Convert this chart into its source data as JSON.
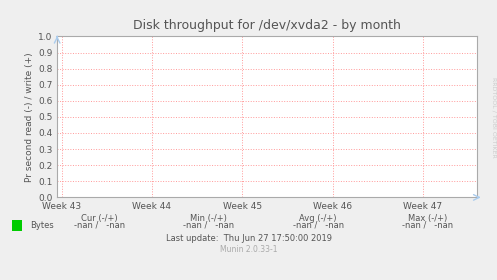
{
  "title": "Disk throughput for /dev/xvda2 - by month",
  "ylabel": "Pr second read (-) / write (+)",
  "xtick_labels": [
    "Week 43",
    "Week 44",
    "Week 45",
    "Week 46",
    "Week 47"
  ],
  "xtick_positions": [
    0,
    1,
    2,
    3,
    4
  ],
  "ylim": [
    0.0,
    1.0
  ],
  "xlim": [
    -0.05,
    4.6
  ],
  "yticks": [
    0.0,
    0.1,
    0.2,
    0.3,
    0.4,
    0.5,
    0.6,
    0.7,
    0.8,
    0.9,
    1.0
  ],
  "bg_color": "#efefef",
  "plot_bg_color": "#ffffff",
  "grid_color": "#ff9999",
  "title_fontsize": 9,
  "label_fontsize": 6.5,
  "tick_fontsize": 6.5,
  "footer_fontsize": 6.0,
  "side_label": "RRDTOOL / TOBI OETIKER",
  "side_label_color": "#cccccc",
  "legend_color": "#00cc00",
  "border_color": "#aaaaaa",
  "arrow_color": "#aaccee",
  "text_color": "#555555"
}
